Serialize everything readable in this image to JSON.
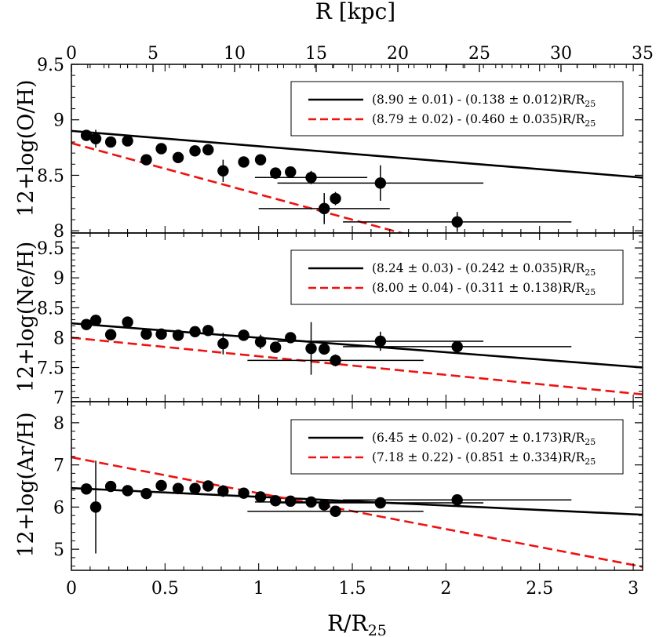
{
  "chart_data": {
    "type": "scatter",
    "top_axis": {
      "label": "R [kpc]",
      "ticks": [
        0,
        5,
        10,
        15,
        20,
        25,
        30,
        35
      ],
      "tick_labels": [
        "0",
        "5",
        "10",
        "15",
        "20",
        "25",
        "30",
        "35"
      ],
      "range": [
        0,
        35
      ]
    },
    "x_axis": {
      "label_main": "R/R",
      "label_sub": "25",
      "range": [
        0,
        3.05
      ],
      "ticks": [
        0,
        0.5,
        1,
        1.5,
        2,
        2.5,
        3
      ],
      "tick_labels": [
        "0",
        "0.5",
        "1",
        "1.5",
        "2",
        "2.5",
        "3"
      ]
    },
    "panels": [
      {
        "ylabel": "12+log(O/H)",
        "ylim": [
          7.98,
          9.5
        ],
        "yticks": [
          8,
          8.5,
          9,
          9.5
        ],
        "ytick_labels": [
          "8",
          "8.5",
          "9",
          "9.5"
        ],
        "points": [
          {
            "x": 0.08,
            "y": 8.86,
            "xerr": 0,
            "yerr": 0.03
          },
          {
            "x": 0.13,
            "y": 8.83,
            "xerr": 0,
            "yerr": 0.08
          },
          {
            "x": 0.21,
            "y": 8.8,
            "xerr": 0,
            "yerr": 0.03
          },
          {
            "x": 0.3,
            "y": 8.81,
            "xerr": 0,
            "yerr": 0.03
          },
          {
            "x": 0.4,
            "y": 8.64,
            "xerr": 0,
            "yerr": 0.03
          },
          {
            "x": 0.48,
            "y": 8.74,
            "xerr": 0,
            "yerr": 0.03
          },
          {
            "x": 0.57,
            "y": 8.66,
            "xerr": 0,
            "yerr": 0.03
          },
          {
            "x": 0.66,
            "y": 8.72,
            "xerr": 0,
            "yerr": 0.03
          },
          {
            "x": 0.73,
            "y": 8.73,
            "xerr": 0,
            "yerr": 0.03
          },
          {
            "x": 0.81,
            "y": 8.54,
            "xerr": 0,
            "yerr": 0.1
          },
          {
            "x": 0.92,
            "y": 8.62,
            "xerr": 0,
            "yerr": 0.03
          },
          {
            "x": 1.01,
            "y": 8.64,
            "xerr": 0,
            "yerr": 0.03
          },
          {
            "x": 1.09,
            "y": 8.52,
            "xerr": 0,
            "yerr": 0.03
          },
          {
            "x": 1.17,
            "y": 8.53,
            "xerr": 0,
            "yerr": 0.03
          },
          {
            "x": 1.28,
            "y": 8.48,
            "xerr": 0.3,
            "yerr": 0.06
          },
          {
            "x": 1.35,
            "y": 8.2,
            "xerr": 0.35,
            "yerr": 0.14
          },
          {
            "x": 1.41,
            "y": 8.29,
            "xerr": 0,
            "yerr": 0.06
          },
          {
            "x": 1.65,
            "y": 8.43,
            "xerr": 0.55,
            "yerr": 0.16
          },
          {
            "x": 2.06,
            "y": 8.08,
            "xerr": 0.61,
            "yerr": 0.09
          }
        ],
        "fits": [
          {
            "label": "(8.90 ± 0.01) - (0.138 ± 0.012)R/R",
            "label_sub": "25",
            "intercept": 8.9,
            "slope": -0.138,
            "style": "solid",
            "color": "#000000"
          },
          {
            "label": "(8.79 ± 0.02) - (0.460 ± 0.035)R/R",
            "label_sub": "25",
            "intercept": 8.79,
            "slope": -0.46,
            "style": "dashed",
            "color": "#ee1111"
          }
        ]
      },
      {
        "ylabel": "12+log(Ne/H)",
        "ylim": [
          6.93,
          9.75
        ],
        "yticks": [
          7,
          7.5,
          8,
          8.5,
          9,
          9.5
        ],
        "ytick_labels": [
          "7",
          "7.5",
          "8",
          "8.5",
          "9",
          "9.5"
        ],
        "points": [
          {
            "x": 0.08,
            "y": 8.22,
            "xerr": 0,
            "yerr": 0.04
          },
          {
            "x": 0.13,
            "y": 8.29,
            "xerr": 0,
            "yerr": 0.04
          },
          {
            "x": 0.21,
            "y": 8.05,
            "xerr": 0,
            "yerr": 0.04
          },
          {
            "x": 0.3,
            "y": 8.26,
            "xerr": 0,
            "yerr": 0.04
          },
          {
            "x": 0.4,
            "y": 8.06,
            "xerr": 0,
            "yerr": 0.04
          },
          {
            "x": 0.48,
            "y": 8.06,
            "xerr": 0,
            "yerr": 0.04
          },
          {
            "x": 0.57,
            "y": 8.04,
            "xerr": 0,
            "yerr": 0.04
          },
          {
            "x": 0.66,
            "y": 8.1,
            "xerr": 0,
            "yerr": 0.04
          },
          {
            "x": 0.73,
            "y": 8.12,
            "xerr": 0,
            "yerr": 0.04
          },
          {
            "x": 0.81,
            "y": 7.9,
            "xerr": 0,
            "yerr": 0.18
          },
          {
            "x": 0.92,
            "y": 8.04,
            "xerr": 0,
            "yerr": 0.04
          },
          {
            "x": 1.01,
            "y": 7.93,
            "xerr": 0,
            "yerr": 0.12
          },
          {
            "x": 1.09,
            "y": 7.84,
            "xerr": 0,
            "yerr": 0.04
          },
          {
            "x": 1.17,
            "y": 8.0,
            "xerr": 0,
            "yerr": 0.04
          },
          {
            "x": 1.28,
            "y": 7.82,
            "xerr": 0,
            "yerr": 0.44
          },
          {
            "x": 1.35,
            "y": 7.81,
            "xerr": 0,
            "yerr": 0.04
          },
          {
            "x": 1.41,
            "y": 7.62,
            "xerr": 0.47,
            "yerr": 0.1
          },
          {
            "x": 1.65,
            "y": 7.94,
            "xerr": 0.55,
            "yerr": 0.16
          },
          {
            "x": 2.06,
            "y": 7.85,
            "xerr": 0.61,
            "yerr": 0.06
          }
        ],
        "fits": [
          {
            "label": "(8.24 ± 0.03) - (0.242 ± 0.035)R/R",
            "label_sub": "25",
            "intercept": 8.24,
            "slope": -0.242,
            "style": "solid",
            "color": "#000000"
          },
          {
            "label": "(8.00 ± 0.04) - (0.311 ± 0.138)R/R",
            "label_sub": "25",
            "intercept": 8.0,
            "slope": -0.311,
            "style": "dashed",
            "color": "#ee1111"
          }
        ]
      },
      {
        "ylabel": "12+log(Ar/H)",
        "ylim": [
          4.5,
          8.5
        ],
        "yticks": [
          5,
          6,
          7,
          8
        ],
        "ytick_labels": [
          "5",
          "6",
          "7",
          "8"
        ],
        "points": [
          {
            "x": 0.08,
            "y": 6.43,
            "xerr": 0,
            "yerr": 0.04
          },
          {
            "x": 0.13,
            "y": 6.0,
            "xerr": 0,
            "yerr": 1.1
          },
          {
            "x": 0.21,
            "y": 6.49,
            "xerr": 0,
            "yerr": 0.04
          },
          {
            "x": 0.3,
            "y": 6.39,
            "xerr": 0,
            "yerr": 0.04
          },
          {
            "x": 0.4,
            "y": 6.32,
            "xerr": 0,
            "yerr": 0.04
          },
          {
            "x": 0.48,
            "y": 6.51,
            "xerr": 0,
            "yerr": 0.04
          },
          {
            "x": 0.57,
            "y": 6.44,
            "xerr": 0,
            "yerr": 0.04
          },
          {
            "x": 0.66,
            "y": 6.44,
            "xerr": 0,
            "yerr": 0.04
          },
          {
            "x": 0.73,
            "y": 6.5,
            "xerr": 0,
            "yerr": 0.04
          },
          {
            "x": 0.81,
            "y": 6.38,
            "xerr": 0,
            "yerr": 0.14
          },
          {
            "x": 0.92,
            "y": 6.33,
            "xerr": 0,
            "yerr": 0.04
          },
          {
            "x": 1.01,
            "y": 6.24,
            "xerr": 0,
            "yerr": 0.04
          },
          {
            "x": 1.09,
            "y": 6.15,
            "xerr": 0,
            "yerr": 0.04
          },
          {
            "x": 1.17,
            "y": 6.14,
            "xerr": 0,
            "yerr": 0.04
          },
          {
            "x": 1.28,
            "y": 6.12,
            "xerr": 0.3,
            "yerr": 0.1
          },
          {
            "x": 1.35,
            "y": 6.05,
            "xerr": 0,
            "yerr": 0.04
          },
          {
            "x": 1.41,
            "y": 5.9,
            "xerr": 0.47,
            "yerr": 0.04
          },
          {
            "x": 1.65,
            "y": 6.1,
            "xerr": 0.55,
            "yerr": 0.04
          },
          {
            "x": 2.06,
            "y": 6.17,
            "xerr": 0.61,
            "yerr": 0.04
          }
        ],
        "fits": [
          {
            "label": "(6.45 ± 0.02) - (0.207 ± 0.173)R/R",
            "label_sub": "25",
            "intercept": 6.45,
            "slope": -0.207,
            "style": "solid",
            "color": "#000000"
          },
          {
            "label": "(7.18 ± 0.22) - (0.851 ± 0.334)R/R",
            "label_sub": "25",
            "intercept": 7.18,
            "slope": -0.851,
            "style": "dashed",
            "color": "#ee1111"
          }
        ]
      }
    ]
  }
}
